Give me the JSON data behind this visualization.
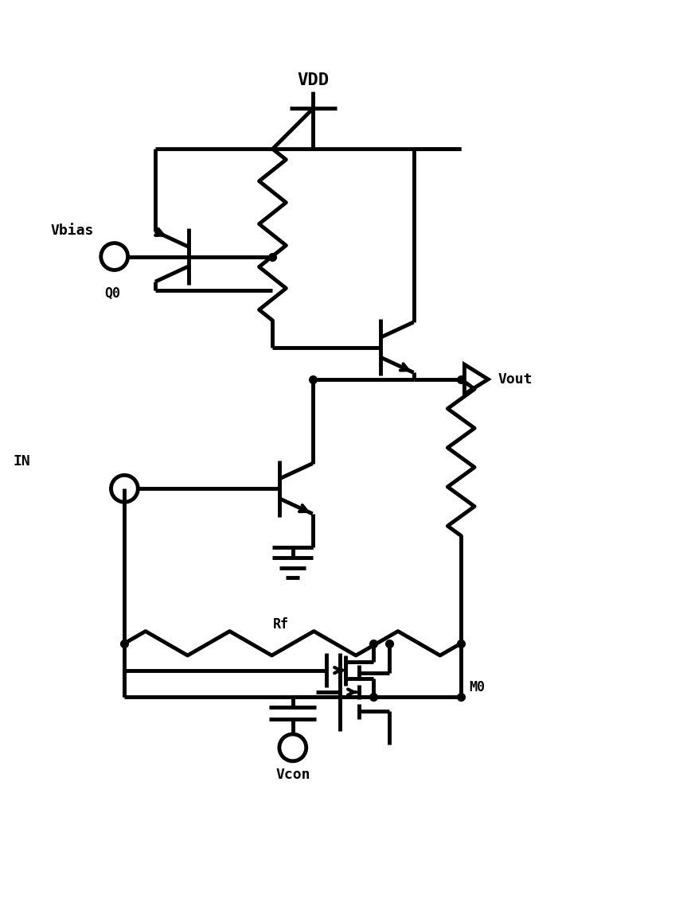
{
  "bg_color": "#ffffff",
  "line_color": "#000000",
  "lw": 3.5,
  "figsize": [
    8.54,
    11.44
  ],
  "dpi": 100,
  "xlim": [
    0,
    10
  ],
  "ylim": [
    0,
    12
  ]
}
